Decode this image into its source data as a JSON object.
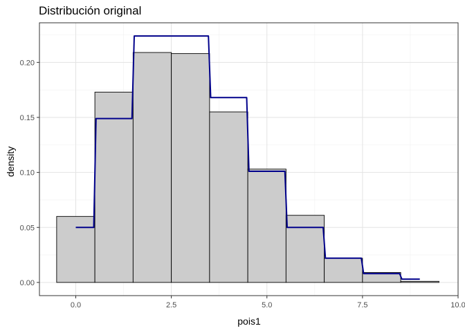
{
  "chart_data": {
    "type": "bar",
    "title": "Distribución original",
    "xlabel": "pois1",
    "ylabel": "density",
    "xlim": [
      -0.95,
      10.0
    ],
    "ylim": [
      -0.012,
      0.236
    ],
    "x_ticks": [
      0.0,
      2.5,
      5.0,
      7.5,
      10.0
    ],
    "x_tick_labels": [
      "0.0",
      "2.5",
      "5.0",
      "7.5",
      "10.0"
    ],
    "y_ticks": [
      0.0,
      0.05,
      0.1,
      0.15,
      0.2
    ],
    "y_tick_labels": [
      "0.00",
      "0.05",
      "0.10",
      "0.15",
      "0.20"
    ],
    "grid": true,
    "histogram": {
      "bin_width": 1,
      "bin_centers": [
        0,
        1,
        2,
        3,
        4,
        5,
        6,
        7,
        8,
        9
      ],
      "density": [
        0.06,
        0.173,
        0.209,
        0.208,
        0.155,
        0.103,
        0.061,
        0.022,
        0.009,
        0.001
      ],
      "fill": "#cccccc",
      "stroke": "#000000"
    },
    "step_line": {
      "x": [
        0,
        1,
        2,
        3,
        4,
        5,
        6,
        7,
        8,
        9
      ],
      "y": [
        0.05,
        0.149,
        0.224,
        0.224,
        0.168,
        0.101,
        0.05,
        0.022,
        0.008,
        0.003
      ],
      "color": "#00008b"
    }
  }
}
